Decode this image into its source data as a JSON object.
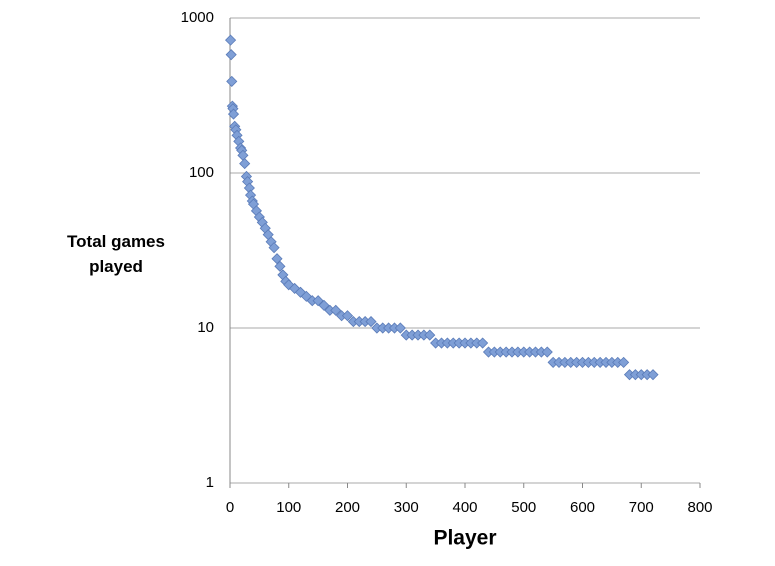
{
  "chart_data": {
    "type": "scatter",
    "x_label": "Player",
    "y_label": "Total games played",
    "log_y": true,
    "grid": true,
    "color": "#7f9fd6",
    "xlim": [
      0,
      800
    ],
    "xticks": [
      0,
      100,
      200,
      300,
      400,
      500,
      600,
      700,
      800
    ],
    "ylim": [
      1,
      1000
    ],
    "yticks": [
      1,
      10,
      100,
      1000
    ],
    "x": [
      1,
      2,
      3,
      4,
      5,
      6,
      8,
      10,
      12,
      15,
      18,
      20,
      22,
      25,
      28,
      30,
      33,
      35,
      38,
      40,
      45,
      50,
      55,
      60,
      65,
      70,
      75,
      80,
      85,
      90,
      95,
      100,
      110,
      120,
      130,
      140,
      150,
      160,
      170,
      180,
      190,
      200,
      210,
      220,
      230,
      240,
      250,
      260,
      270,
      280,
      290,
      300,
      310,
      320,
      330,
      340,
      350,
      360,
      370,
      380,
      390,
      400,
      410,
      420,
      430,
      440,
      450,
      460,
      470,
      480,
      490,
      500,
      510,
      520,
      530,
      540,
      550,
      560,
      570,
      580,
      590,
      600,
      610,
      620,
      630,
      640,
      650,
      660,
      670,
      680,
      690,
      700,
      710,
      720
    ],
    "y": [
      720,
      580,
      390,
      270,
      260,
      240,
      200,
      190,
      175,
      160,
      145,
      140,
      130,
      115,
      95,
      88,
      80,
      72,
      66,
      63,
      57,
      52,
      48,
      44,
      40,
      36,
      33,
      28,
      25,
      22,
      20,
      19,
      18,
      17,
      16,
      15,
      15,
      14,
      13,
      13,
      12,
      12,
      11,
      11,
      11,
      11,
      10,
      10,
      10,
      10,
      10,
      9,
      9,
      9,
      9,
      9,
      8,
      8,
      8,
      8,
      8,
      8,
      8,
      8,
      8,
      7,
      7,
      7,
      7,
      7,
      7,
      7,
      7,
      7,
      7,
      7,
      6,
      6,
      6,
      6,
      6,
      6,
      6,
      6,
      6,
      6,
      6,
      6,
      6,
      5,
      5,
      5,
      5,
      5
    ]
  }
}
